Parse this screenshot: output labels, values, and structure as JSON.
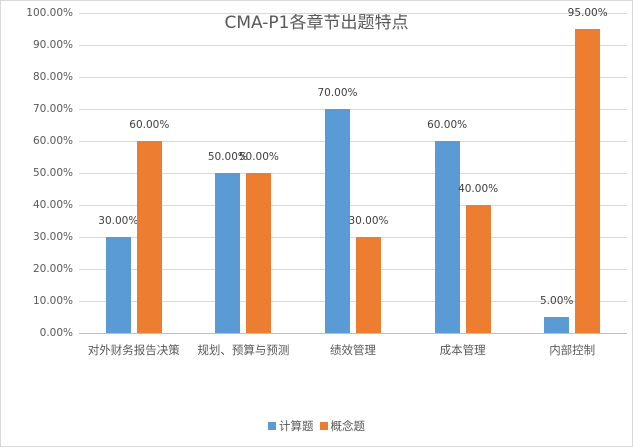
{
  "chart_data": {
    "type": "bar",
    "title": "CMA-P1各章节出题特点",
    "xlabel": "",
    "ylabel": "",
    "ylim": [
      0,
      1.0
    ],
    "yticks": [
      "0.00%",
      "10.00%",
      "20.00%",
      "30.00%",
      "40.00%",
      "50.00%",
      "60.00%",
      "70.00%",
      "80.00%",
      "90.00%",
      "100.00%"
    ],
    "grid": true,
    "legend_position": "bottom",
    "categories": [
      "对外财务报告决策",
      "规划、预算与预测",
      "绩效管理",
      "成本管理",
      "内部控制"
    ],
    "series": [
      {
        "name": "计算题",
        "color": "#5b9bd5",
        "values": [
          0.3,
          0.5,
          0.7,
          0.6,
          0.05
        ],
        "labels": [
          "30.00%",
          "50.00%",
          "70.00%",
          "60.00%",
          "5.00%"
        ]
      },
      {
        "name": "概念题",
        "color": "#ed7d31",
        "values": [
          0.6,
          0.5,
          0.3,
          0.4,
          0.95
        ],
        "labels": [
          "60.00%",
          "50.00%",
          "30.00%",
          "40.00%",
          "95.00%"
        ]
      }
    ]
  }
}
